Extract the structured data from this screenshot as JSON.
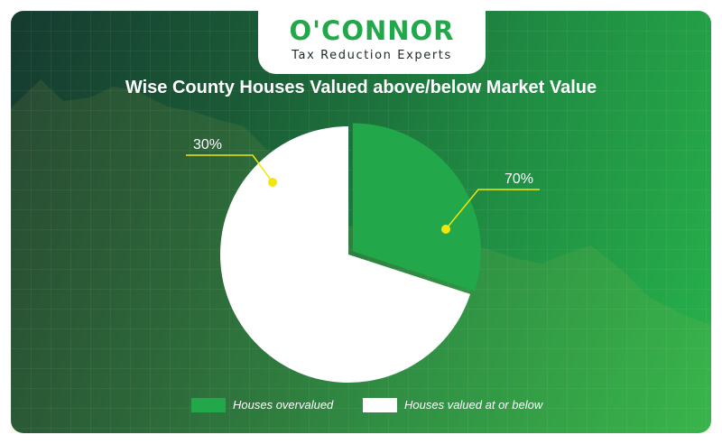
{
  "brand": {
    "name": "O'CONNOR",
    "tagline": "Tax Reduction Experts",
    "color": "#22a84a"
  },
  "chart_data": {
    "type": "pie",
    "title": "Wise County Houses Valued above/below Market Value",
    "slices": [
      {
        "name": "Houses overvalued",
        "value": 30,
        "label": "30%",
        "color": "#22a84a"
      },
      {
        "name": "Houses valued at or below",
        "value": 70,
        "label": "70%",
        "color": "#ffffff"
      }
    ],
    "legend_position": "bottom",
    "label_color": "#f2e60c"
  }
}
